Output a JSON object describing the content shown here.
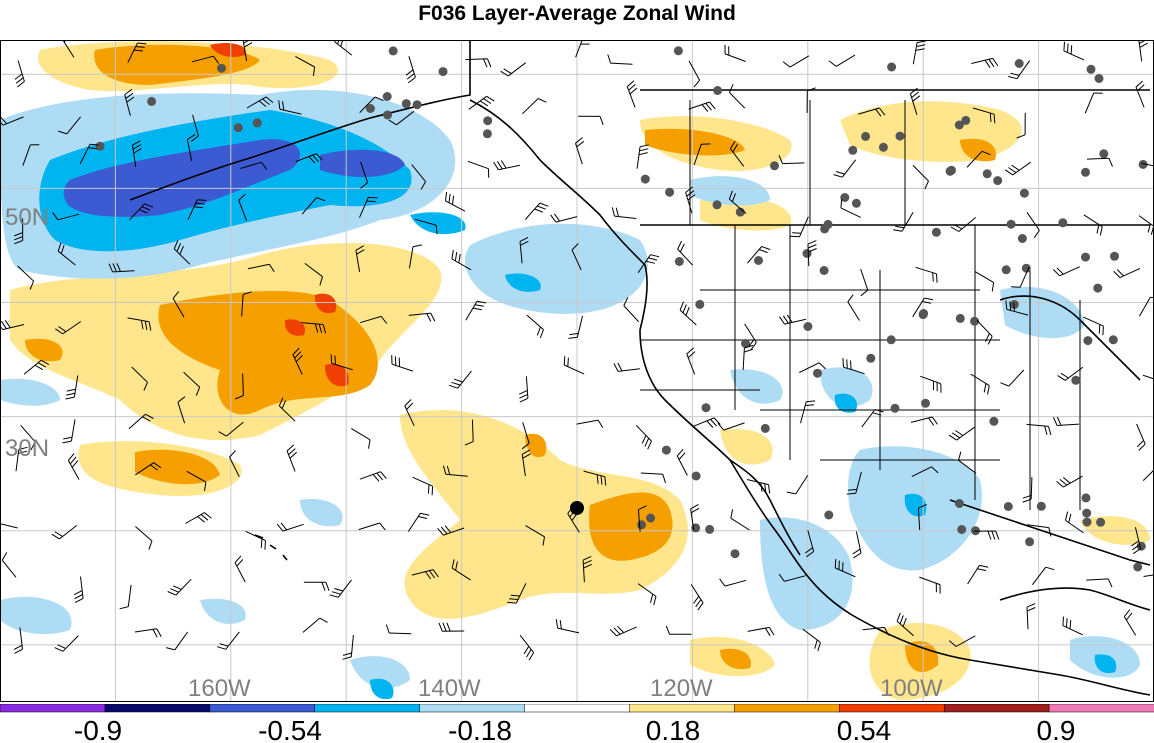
{
  "title": "F036 Layer-Average Zonal Wind",
  "map": {
    "lat_labels": [
      "50N",
      "30N"
    ],
    "lon_labels": [
      "160W",
      "140W",
      "120W",
      "100W"
    ],
    "extent": {
      "lon_min": -180,
      "lon_max": -80,
      "lat_min": 5,
      "lat_max": 63
    },
    "grid_lons": [
      -170,
      -160,
      -150,
      -140,
      -130,
      -120,
      -110,
      -100,
      -90
    ],
    "grid_lats": [
      10,
      20,
      30,
      40,
      50,
      60
    ],
    "colors": {
      "light_yellow": "#ffe68c",
      "orange": "#f5a000",
      "red_orange": "#f04000",
      "light_blue": "#aedcf5",
      "cyan_blue": "#00b4f0",
      "dark_blue": "#3c5ad2",
      "land_outline": "#000000",
      "station_dot": "#555555",
      "grid": "#c8c8c8"
    },
    "highlight_point": {
      "lon": -130,
      "lat": 22
    }
  },
  "colorbar": {
    "labels": [
      "-0.9",
      "-0.54",
      "-0.18",
      "0.18",
      "0.54",
      "0.9"
    ],
    "segments": [
      "#8a2be2",
      "#0a0a6e",
      "#3c5ad2",
      "#00b4f0",
      "#aedcf5",
      "#ffffff",
      "#ffe68c",
      "#f5a000",
      "#f04000",
      "#a01e1e",
      "#f07ab4"
    ]
  }
}
